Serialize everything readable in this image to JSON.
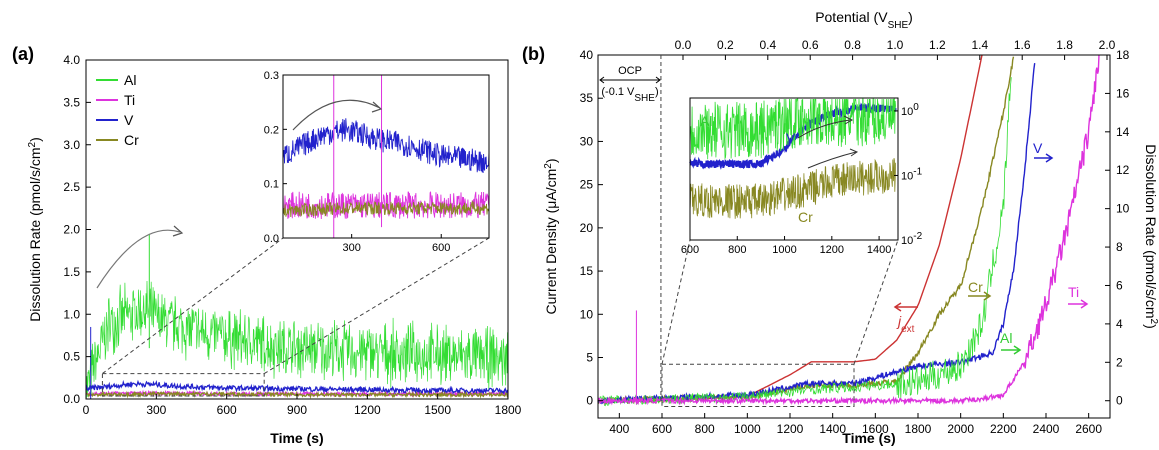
{
  "panel_labels": [
    "(a)",
    "(b)"
  ],
  "chart_data": [
    {
      "type": "line",
      "panel": "(a)",
      "xlabel": "Time (s)",
      "ylabel": "Dissolution Rate (pmol/s/cm²)",
      "xlim": [
        0,
        1800
      ],
      "ylim": [
        0,
        4.0
      ],
      "xticks": [
        "0",
        "300",
        "600",
        "900",
        "1200",
        "1500",
        "1800"
      ],
      "yticks": [
        "0.0",
        "0.5",
        "1.0",
        "1.5",
        "2.0",
        "2.5",
        "3.0",
        "3.5",
        "4.0"
      ],
      "legend_position": "top-left",
      "series": [
        {
          "name": "Al",
          "color": "#33dd33",
          "x": [
            0,
            50,
            100,
            200,
            260,
            300,
            400,
            500,
            600,
            700,
            800,
            900,
            1000,
            1100,
            1200,
            1300,
            1400,
            1500,
            1600,
            1700,
            1800
          ],
          "y": [
            0.1,
            0.5,
            0.9,
            1.0,
            1.05,
            0.95,
            0.85,
            0.78,
            0.72,
            0.68,
            0.62,
            0.6,
            0.58,
            0.56,
            0.55,
            0.54,
            0.53,
            0.52,
            0.5,
            0.49,
            0.48
          ]
        },
        {
          "name": "Ti",
          "color": "#dd33dd",
          "x": [
            0,
            300,
            600,
            900,
            1200,
            1500,
            1800
          ],
          "y": [
            0.06,
            0.07,
            0.06,
            0.06,
            0.06,
            0.06,
            0.06
          ]
        },
        {
          "name": "V",
          "color": "#2222cc",
          "x": [
            0,
            100,
            200,
            300,
            400,
            600,
            900,
            1200,
            1500,
            1800
          ],
          "y": [
            0.12,
            0.15,
            0.18,
            0.17,
            0.15,
            0.13,
            0.12,
            0.11,
            0.1,
            0.1
          ]
        },
        {
          "name": "Cr",
          "color": "#888822",
          "x": [
            0,
            300,
            600,
            900,
            1200,
            1500,
            1800
          ],
          "y": [
            0.05,
            0.06,
            0.06,
            0.05,
            0.05,
            0.05,
            0.05
          ]
        }
      ],
      "inset": {
        "xticks": [
          "300",
          "600"
        ],
        "yticks": [
          "0.0",
          "0.1",
          "0.2",
          "0.3"
        ],
        "xlim": [
          70,
          760
        ],
        "ylim": [
          0,
          0.3
        ],
        "series": [
          {
            "name": "V",
            "color": "#2222cc",
            "x": [
              70,
              200,
              280,
              400,
              500,
              600,
              760
            ],
            "y": [
              0.15,
              0.19,
              0.2,
              0.18,
              0.17,
              0.15,
              0.14
            ]
          },
          {
            "name": "Ti",
            "color": "#dd33dd",
            "x": [
              70,
              300,
              600,
              760
            ],
            "y": [
              0.06,
              0.06,
              0.06,
              0.06
            ]
          },
          {
            "name": "Cr",
            "color": "#888822",
            "x": [
              70,
              300,
              600,
              760
            ],
            "y": [
              0.05,
              0.055,
              0.055,
              0.055
            ]
          }
        ]
      }
    },
    {
      "type": "line",
      "panel": "(b)",
      "xlabel": "Time (s)",
      "x2label": "Potential (V_SHE)",
      "ylabel": "Current Density (μA/cm²)",
      "y2label": "Dissolution Rate (pmol/s/cm²)",
      "xlim": [
        300,
        2700
      ],
      "x2lim": [
        -0.1,
        2.0
      ],
      "ylim": [
        -2,
        40
      ],
      "y2lim": [
        -0.9,
        18
      ],
      "xticks": [
        "400",
        "600",
        "800",
        "1000",
        "1200",
        "1400",
        "1600",
        "1800",
        "2000",
        "2200",
        "2400",
        "2600"
      ],
      "x2ticks": [
        "0.0",
        "0.2",
        "0.4",
        "0.6",
        "0.8",
        "1.0",
        "1.2",
        "1.4",
        "1.6",
        "1.8",
        "2.0"
      ],
      "yticks": [
        "0",
        "5",
        "10",
        "15",
        "20",
        "25",
        "30",
        "35",
        "40"
      ],
      "y2ticks": [
        "0",
        "2",
        "4",
        "6",
        "8",
        "10",
        "12",
        "14",
        "16",
        "18"
      ],
      "annotations": {
        "ocp": "OCP",
        "ocp_sub": "(-0.1 V_SHE)",
        "jext": "j_ext",
        "cr": "Cr",
        "v": "V",
        "al": "Al",
        "ti": "Ti"
      },
      "series": [
        {
          "name": "j_ext",
          "color": "#cc3333",
          "x": [
            300,
            600,
            1000,
            1200,
            1300,
            1500,
            1600,
            1700,
            1800,
            1900,
            2000,
            2100
          ],
          "y": [
            0,
            0,
            0.5,
            3,
            4.5,
            4.5,
            4.8,
            7,
            11,
            18,
            28,
            40
          ]
        },
        {
          "name": "Cr",
          "color": "#888822",
          "x": [
            300,
            1000,
            1300,
            1500,
            1700,
            1800,
            1900,
            2000,
            2100,
            2200,
            2250
          ],
          "y": [
            0,
            0.2,
            0.8,
            0.8,
            1.0,
            2.5,
            4.5,
            6,
            10,
            15,
            18
          ]
        },
        {
          "name": "V",
          "color": "#2222cc",
          "x": [
            300,
            1000,
            1300,
            1500,
            1800,
            2000,
            2150,
            2200,
            2250,
            2300,
            2350
          ],
          "y": [
            0,
            0.3,
            0.9,
            0.9,
            1.8,
            2,
            2.5,
            4,
            7,
            12,
            18
          ]
        },
        {
          "name": "Al",
          "color": "#33dd33",
          "x": [
            300,
            1000,
            1300,
            1500,
            1800,
            2000,
            2100,
            2200,
            2240
          ],
          "y": [
            0,
            0.2,
            0.6,
            0.7,
            1,
            1.8,
            4,
            10,
            18
          ]
        },
        {
          "name": "Ti",
          "color": "#dd33dd",
          "x": [
            300,
            2000,
            2100,
            2200,
            2300,
            2400,
            2500,
            2600,
            2650
          ],
          "y": [
            0,
            0,
            0.1,
            0.3,
            2,
            5,
            9,
            14,
            18
          ]
        }
      ],
      "inset": {
        "xticks": [
          "600",
          "800",
          "1000",
          "1200",
          "1400"
        ],
        "yticks": [
          "10^-2",
          "10^-1",
          "10^0"
        ],
        "series": [
          {
            "name": "V",
            "color": "#2222cc",
            "x": [
              600,
              900,
              1000,
              1100,
              1200,
              1300,
              1400,
              1470
            ],
            "y": [
              0.15,
              0.15,
              0.25,
              0.6,
              0.9,
              1.1,
              1.1,
              1.1
            ]
          },
          {
            "name": "Al",
            "color": "#33dd33",
            "x": [
              600,
              900,
              1000,
              1100,
              1200,
              1300,
              1470
            ],
            "y": [
              0.5,
              0.5,
              0.7,
              0.8,
              0.7,
              0.8,
              0.8
            ]
          },
          {
            "name": "Cr",
            "color": "#888822",
            "x": [
              600,
              900,
              1000,
              1100,
              1200,
              1300,
              1470
            ],
            "y": [
              0.04,
              0.04,
              0.05,
              0.06,
              0.08,
              0.09,
              0.1
            ]
          }
        ],
        "labels": {
          "al": "Al",
          "v": "V",
          "cr": "Cr"
        }
      }
    }
  ]
}
